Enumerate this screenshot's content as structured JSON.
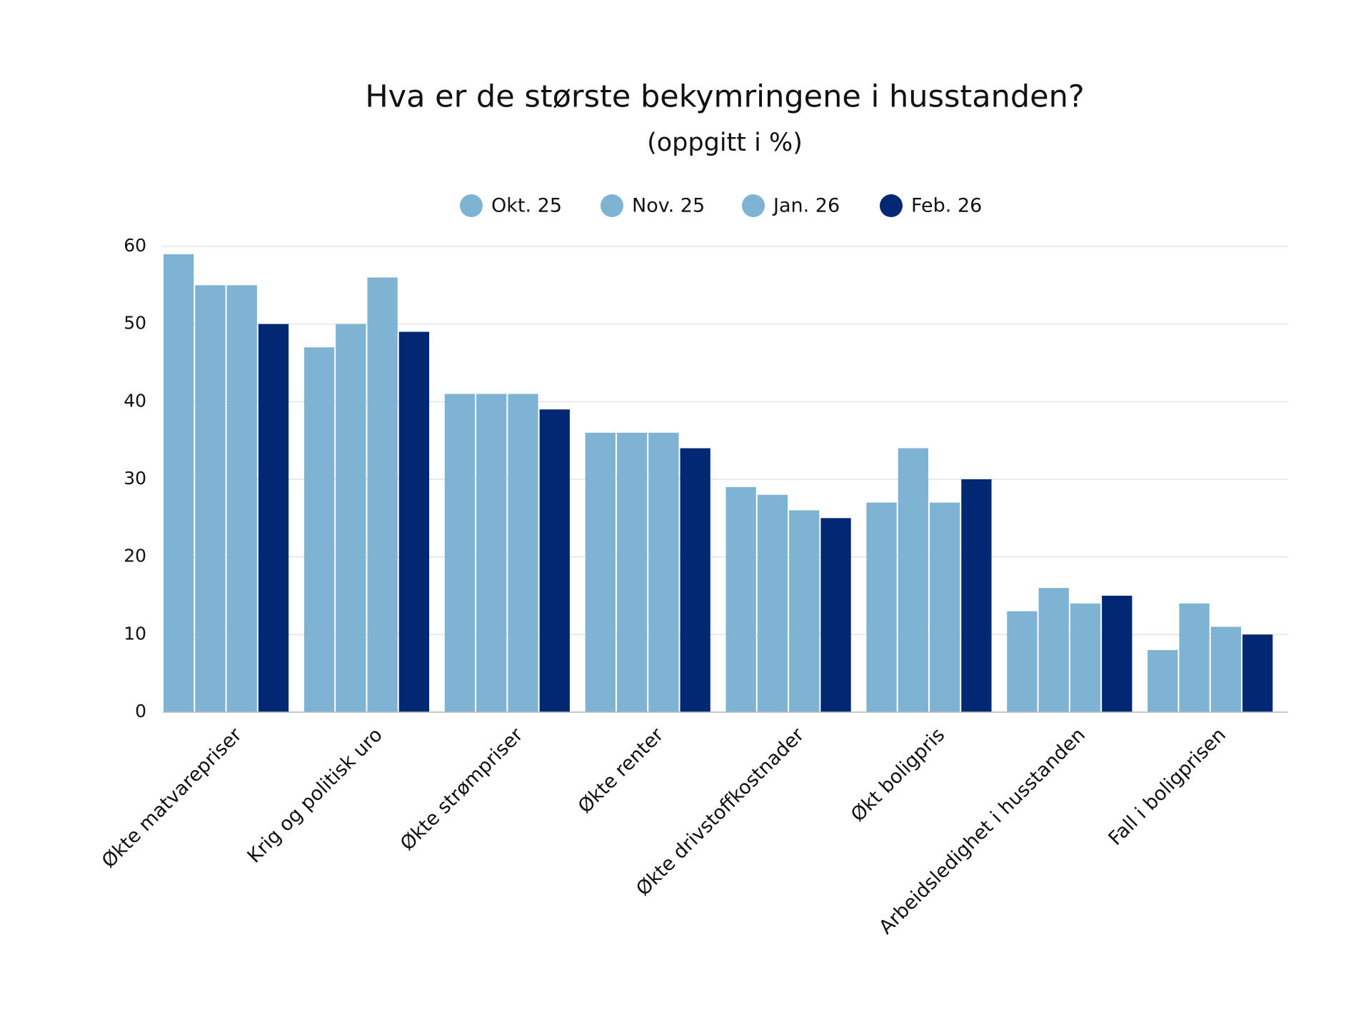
{
  "chart_data": {
    "type": "bar",
    "title": "Hva er de største bekymringene i husstanden?",
    "subtitle": "(oppgitt i %)",
    "categories": [
      "Økte matvarepriser",
      "Krig og politisk uro",
      "Økte strømpriser",
      "Økte renter",
      "Økte drivstoffkostnader",
      "Økt boligpris",
      "Arbeidsledighet i husstanden",
      "Fall i boligprisen"
    ],
    "series": [
      {
        "name": "Okt. 25",
        "color": "#7fb3d3",
        "values": [
          59,
          47,
          41,
          36,
          29,
          27,
          13,
          8
        ]
      },
      {
        "name": "Nov. 25",
        "color": "#7fb3d3",
        "values": [
          55,
          50,
          41,
          36,
          28,
          34,
          16,
          14
        ]
      },
      {
        "name": "Jan. 26",
        "color": "#7fb3d3",
        "values": [
          55,
          56,
          41,
          36,
          26,
          27,
          14,
          11
        ]
      },
      {
        "name": "Feb. 26",
        "color": "#022873",
        "values": [
          50,
          49,
          39,
          34,
          25,
          30,
          15,
          10
        ]
      }
    ],
    "ylim": [
      0,
      60
    ],
    "yticks": [
      0,
      10,
      20,
      30,
      40,
      50,
      60
    ],
    "grid": true,
    "legend": "top"
  }
}
